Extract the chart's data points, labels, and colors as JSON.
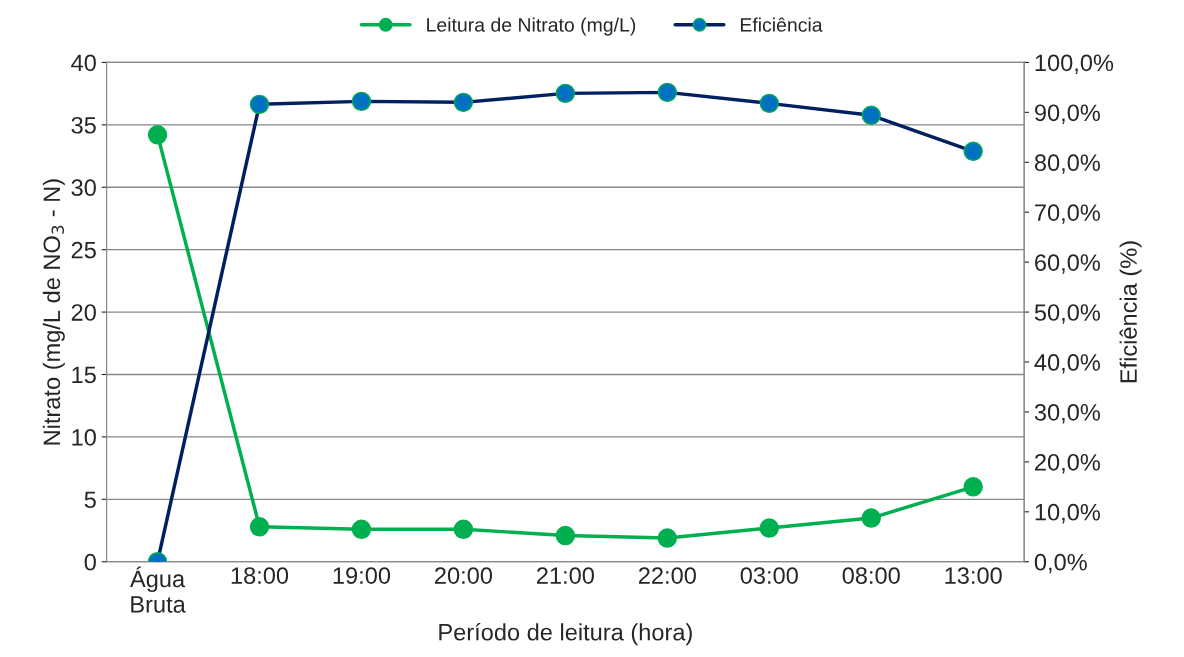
{
  "chart_data": {
    "type": "line",
    "xlabel": "Período de leitura (hora)",
    "ylabel": "Nitrato (mg/L de NO$_{3}$ - N)",
    "y2label": "Eficiência (%)",
    "categories": [
      "Água\nBruta",
      "18:00",
      "19:00",
      "20:00",
      "21:00",
      "22:00",
      "03:00",
      "08:00",
      "13:00"
    ],
    "series": [
      {
        "name": "Leitura de Nitrato (mg/L)",
        "color": "#00b050",
        "values": [
          34.2,
          2.8,
          2.6,
          2.6,
          2.1,
          1.9,
          2.7,
          3.5,
          6.0
        ]
      },
      {
        "name": "Eficiência",
        "color": "#002060",
        "axis": "y2",
        "values": [
          0,
          91.6,
          92.2,
          92.0,
          93.8,
          94.0,
          91.8,
          89.4,
          82.2
        ]
      }
    ],
    "ylim": [
      0,
      40
    ],
    "yticks": [
      0,
      5,
      10,
      15,
      20,
      25,
      30,
      35,
      40
    ],
    "y2lim": [
      0,
      100
    ],
    "y2ticks": [
      {
        "value": 0,
        "label": "0,0%"
      },
      {
        "value": 10,
        "label": "10,0%"
      },
      {
        "value": 20,
        "label": "20,0%"
      },
      {
        "value": 30,
        "label": "30,0%"
      },
      {
        "value": 40,
        "label": "40,0%"
      },
      {
        "value": 50,
        "label": "50,0%"
      },
      {
        "value": 60,
        "label": "60,0%"
      },
      {
        "value": 70,
        "label": "70,0%"
      },
      {
        "value": 80,
        "label": "80,0%"
      },
      {
        "value": 90,
        "label": "90,0%"
      },
      {
        "value": 100,
        "label": "100,0%"
      }
    ],
    "grid": "y",
    "legend": "top",
    "marker": "circle",
    "line_style": "solid"
  }
}
